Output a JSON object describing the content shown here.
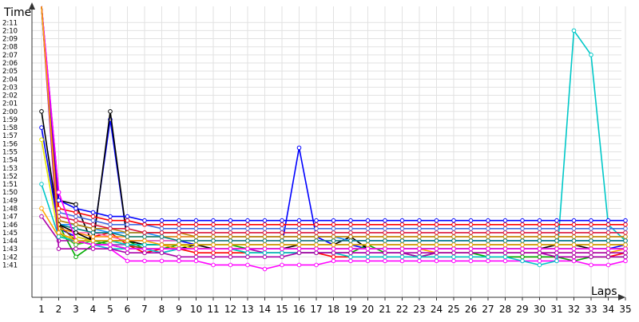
{
  "chart_data": {
    "type": "line",
    "xlabel": "Laps",
    "ylabel": "Time",
    "x": [
      1,
      2,
      3,
      4,
      5,
      6,
      7,
      8,
      9,
      10,
      11,
      12,
      13,
      14,
      15,
      16,
      17,
      18,
      19,
      20,
      21,
      22,
      23,
      24,
      25,
      26,
      27,
      28,
      29,
      30,
      31,
      32,
      33,
      34,
      35
    ],
    "ylim_seconds": [
      97,
      133
    ],
    "y_ticks_seconds": [
      101,
      102,
      103,
      104,
      105,
      106,
      107,
      108,
      109,
      110,
      111,
      112,
      113,
      114,
      115,
      116,
      117,
      118,
      119,
      120,
      121,
      122,
      123,
      124,
      125,
      126,
      127,
      128,
      129,
      130,
      131
    ],
    "y_tick_labels": [
      "1:41",
      "1:42",
      "1:43",
      "1:44",
      "1:45",
      "1:46",
      "1:47",
      "1:48",
      "1:49",
      "1:50",
      "1:51",
      "1:52",
      "1:53",
      "1:54",
      "1:55",
      "1:56",
      "1:57",
      "1:58",
      "1:59",
      "2:00",
      "2:01",
      "2:02",
      "2:03",
      "2:04",
      "2:05",
      "2:06",
      "2:07",
      "2:08",
      "2:09",
      "2:10",
      "2:11"
    ],
    "grid": true,
    "legend": false,
    "colors": [
      "#ff0000",
      "#0000ff",
      "#00aa00",
      "#000000",
      "#aa00aa",
      "#ff00ff",
      "#00c8c8",
      "#ffa500",
      "#8b4513",
      "#808080",
      "#e6e600",
      "#ff69b4",
      "#1e90ff",
      "#32cd32",
      "#9370db",
      "#ff8c00",
      "#008080",
      "#b8860b",
      "#dc143c",
      "#4169e1"
    ],
    "series": [
      {
        "values": [
          133,
          105,
          103.5,
          104.5,
          105,
          103.5,
          102.5,
          103,
          103,
          102.5,
          102.5,
          102.5,
          102.5,
          102.5,
          102.5,
          102.5,
          102.5,
          102,
          102,
          102,
          102,
          102,
          102,
          102,
          102,
          102,
          102,
          102,
          102,
          102,
          102,
          102,
          102,
          102,
          102.5
        ]
      },
      {
        "values": [
          118,
          105.5,
          104.5,
          104,
          119,
          104,
          104,
          104,
          104,
          103.5,
          103.5,
          103.5,
          103.5,
          103.5,
          103.5,
          115.5,
          104.5,
          103.5,
          103.5,
          103,
          103,
          103,
          103,
          103,
          103,
          103,
          103,
          103,
          103,
          103,
          103,
          103,
          103,
          103,
          103.5
        ]
      },
      {
        "values": [
          133,
          106,
          102,
          103.5,
          104,
          104,
          103,
          103,
          103.5,
          103,
          103,
          103,
          102.5,
          102.5,
          102.5,
          102.5,
          102.5,
          102.5,
          102.5,
          103.5,
          102.5,
          102.5,
          102,
          102.5,
          102.5,
          102.5,
          102,
          102,
          102,
          102,
          102,
          101.5,
          102,
          102,
          102
        ]
      },
      {
        "values": [
          133,
          109,
          108.5,
          103.5,
          120,
          104,
          103.5,
          103.5,
          103,
          103.5,
          103,
          103,
          103,
          103,
          103,
          103.5,
          103.5,
          103.5,
          104.5,
          103,
          103,
          103,
          103,
          103,
          103,
          103,
          103,
          103,
          103,
          103,
          103.5,
          103.5,
          103,
          103,
          103
        ]
      },
      {
        "values": [
          107,
          104,
          104,
          103.5,
          103.5,
          103,
          103,
          102.5,
          103,
          103,
          103,
          103,
          103,
          102.5,
          102.5,
          102.5,
          102.5,
          102.5,
          102.5,
          102.5,
          102.5,
          102.5,
          102,
          102.5,
          102.5,
          102.5,
          102.5,
          102.5,
          102.5,
          102.5,
          102,
          102,
          102,
          102,
          102
        ]
      },
      {
        "values": [
          133,
          110,
          104,
          103.5,
          103,
          101.5,
          101.5,
          101.5,
          101.5,
          101.5,
          101,
          101,
          101,
          100.5,
          101,
          101,
          101,
          101.5,
          101.5,
          101.5,
          101.5,
          101.5,
          101.5,
          101.5,
          101.5,
          101.5,
          101.5,
          101.5,
          101.5,
          101.5,
          101.5,
          101.5,
          101,
          101,
          101.5
        ]
      },
      {
        "values": [
          133,
          106,
          104,
          103.5,
          103,
          103,
          103,
          102.5,
          103,
          103,
          103,
          103,
          102.5,
          102.5,
          102.5,
          102.5,
          102.5,
          102.5,
          102,
          102,
          102,
          102,
          102,
          102,
          102,
          102,
          102,
          102,
          101.5,
          101,
          101.5,
          130,
          127,
          106,
          104
        ]
      },
      {
        "values": [
          108,
          104.5,
          104,
          103.5,
          103.5,
          103.5,
          103.5,
          103.5,
          103,
          103,
          103,
          103,
          103,
          103,
          103,
          103,
          103,
          103,
          103,
          103,
          103,
          103,
          103,
          102.5,
          102.5,
          102.5,
          102.5,
          102.5,
          102.5,
          102.5,
          102.5,
          102.5,
          102.5,
          102.5,
          103
        ]
      },
      {
        "values": [
          133,
          106,
          104,
          103.5,
          103.5,
          103.5,
          103,
          103,
          103,
          103,
          103,
          103,
          103,
          103,
          103,
          103,
          103,
          103,
          103,
          103,
          103,
          103,
          103,
          103,
          103,
          103,
          103,
          103,
          103,
          103,
          103,
          103,
          103,
          103,
          103
        ]
      },
      {
        "values": [
          133,
          105,
          104,
          103.5,
          103.5,
          103,
          103,
          103,
          103,
          103,
          103,
          103,
          103,
          103,
          103,
          103,
          103,
          103,
          103,
          103,
          103,
          103,
          103,
          103,
          103,
          103,
          103,
          103,
          103,
          103,
          103,
          103,
          103,
          103,
          103
        ]
      },
      {
        "values": [
          116.5,
          104.5,
          104.5,
          104,
          104,
          103.5,
          103.5,
          103.5,
          103.5,
          103,
          103,
          103,
          103,
          103,
          103,
          103,
          103,
          103,
          103,
          103,
          103,
          103,
          103,
          103,
          103,
          103,
          103,
          103,
          103,
          103,
          103,
          103,
          103,
          103,
          103
        ]
      },
      {
        "values": [
          133,
          106,
          105,
          105,
          104.5,
          104,
          104,
          104,
          104,
          104,
          104,
          104,
          104,
          104,
          104,
          104,
          104,
          104,
          104,
          104,
          104,
          104,
          104,
          104,
          104,
          104,
          104,
          104,
          104,
          104,
          104,
          104,
          104,
          104,
          104
        ]
      },
      {
        "values": [
          133,
          106,
          106,
          105.5,
          105,
          105,
          105,
          104.5,
          104.5,
          104.5,
          104.5,
          104.5,
          104.5,
          104.5,
          104.5,
          104.5,
          104.5,
          104.5,
          104,
          104,
          104,
          104,
          104,
          104,
          104,
          104,
          104,
          104,
          104,
          104,
          104,
          104,
          104,
          104,
          104
        ]
      },
      {
        "values": [
          133,
          105,
          103.5,
          104,
          103.5,
          103,
          103,
          103,
          103,
          103,
          103,
          103,
          103,
          103,
          103,
          103,
          103,
          103,
          103,
          103,
          103,
          103,
          103,
          103,
          103,
          103,
          103,
          103,
          103,
          103,
          103,
          103,
          103,
          103,
          103
        ]
      },
      {
        "values": [
          133,
          110,
          104,
          103.5,
          103.5,
          103.5,
          103.5,
          103.5,
          103.5,
          103.5,
          103.5,
          103.5,
          103.5,
          103.5,
          103.5,
          103.5,
          103.5,
          103.5,
          103.5,
          103.5,
          103.5,
          103.5,
          103.5,
          103.5,
          103.5,
          103.5,
          103.5,
          103.5,
          103.5,
          103.5,
          103.5,
          103.5,
          103.5,
          103.5,
          103.5
        ]
      },
      {
        "values": [
          133,
          105.5,
          105,
          104.5,
          104.5,
          104.5,
          104.5,
          104.5,
          104.5,
          104.5,
          104.5,
          104.5,
          104.5,
          104.5,
          104.5,
          104.5,
          104.5,
          104.5,
          104.5,
          104.5,
          104.5,
          104.5,
          104.5,
          104.5,
          104.5,
          104.5,
          104.5,
          104.5,
          104.5,
          104.5,
          104.5,
          104.5,
          104.5,
          104.5,
          104.5
        ]
      },
      {
        "values": [
          133,
          106,
          105.5,
          105,
          105,
          104.5,
          104.5,
          104.5,
          104,
          104,
          104,
          104,
          104,
          104,
          104,
          104,
          104,
          104,
          104,
          104,
          104,
          104,
          104,
          104,
          104,
          104,
          104,
          104,
          104,
          104,
          104,
          104,
          104,
          104,
          104
        ]
      },
      {
        "values": [
          133,
          106.5,
          106,
          105.5,
          105.5,
          105,
          105,
          105,
          105,
          104.5,
          104.5,
          104.5,
          104.5,
          104.5,
          104.5,
          104.5,
          104.5,
          104.5,
          104.5,
          104.5,
          104.5,
          104.5,
          104.5,
          104.5,
          104.5,
          104.5,
          104.5,
          104.5,
          104.5,
          104.5,
          104.5,
          104.5,
          104.5,
          104.5,
          104.5
        ]
      },
      {
        "values": [
          133,
          107,
          106.5,
          106,
          105.5,
          105.5,
          105,
          105,
          105,
          105,
          105,
          105,
          105,
          105,
          105,
          105,
          105,
          105,
          105,
          105,
          105,
          105,
          105,
          105,
          105,
          105,
          105,
          105,
          105,
          105,
          105,
          105,
          105,
          105,
          105
        ]
      },
      {
        "values": [
          133,
          107.5,
          107,
          106.5,
          106,
          106,
          106,
          105.5,
          105.5,
          105.5,
          105.5,
          105.5,
          105.5,
          105.5,
          105.5,
          105.5,
          105.5,
          105.5,
          105.5,
          105.5,
          105.5,
          105.5,
          105.5,
          105.5,
          105.5,
          105.5,
          105.5,
          105.5,
          105.5,
          105.5,
          105.5,
          105.5,
          105.5,
          105.5,
          105.5
        ]
      },
      {
        "values": [
          133,
          108,
          107.5,
          107,
          106.5,
          106.5,
          106,
          106,
          106,
          106,
          106,
          106,
          106,
          106,
          106,
          106,
          106,
          106,
          106,
          106,
          106,
          106,
          106,
          106,
          106,
          106,
          106,
          106,
          106,
          106,
          106,
          106,
          106,
          106,
          106
        ]
      },
      {
        "values": [
          133,
          109,
          108,
          107.5,
          107,
          107,
          106.5,
          106.5,
          106.5,
          106.5,
          106.5,
          106.5,
          106.5,
          106.5,
          106.5,
          106.5,
          106.5,
          106.5,
          106.5,
          106.5,
          106.5,
          106.5,
          106.5,
          106.5,
          106.5,
          106.5,
          106.5,
          106.5,
          106.5,
          106.5,
          106.5,
          106.5,
          106.5,
          106.5,
          106.5
        ]
      },
      {
        "values": [
          133,
          104.5,
          104,
          103.5,
          104,
          103.5,
          103.5,
          103.5,
          103.5,
          103.5,
          103.5,
          103.5,
          103,
          103,
          103,
          103,
          103,
          103,
          103,
          103,
          103,
          103,
          103,
          103,
          103,
          103,
          103,
          103,
          103,
          103,
          103,
          103,
          103,
          103,
          103
        ]
      },
      {
        "values": [
          120,
          106,
          105,
          104,
          104,
          104,
          103.5,
          103.5,
          103.5,
          103.5,
          103.5,
          103.5,
          103.5,
          103.5,
          103.5,
          103.5,
          103.5,
          103.5,
          103.5,
          103.5,
          103.5,
          103.5,
          103.5,
          103.5,
          103.5,
          103.5,
          103.5,
          103.5,
          103.5,
          103.5,
          103.5,
          103.5,
          103.5,
          103.5,
          103.5
        ]
      },
      {
        "values": [
          133,
          103,
          103,
          103,
          103,
          102.5,
          102.5,
          102.5,
          102,
          102,
          102,
          102,
          102,
          102,
          102,
          102.5,
          102.5,
          102.5,
          102.5,
          102.5,
          102.5,
          102.5,
          102.5,
          102.5,
          102.5,
          102.5,
          102.5,
          102.5,
          102.5,
          102.5,
          102.5,
          102.5,
          102.5,
          102.5,
          102.5
        ]
      },
      {
        "values": [
          133,
          110,
          104,
          103.5,
          103.5,
          103,
          103,
          103,
          103,
          103,
          103,
          103,
          103,
          103,
          103,
          103,
          103,
          103,
          103,
          103,
          103,
          103,
          103,
          103,
          103,
          103,
          103,
          103,
          103,
          103,
          103,
          103,
          103,
          103,
          103
        ]
      },
      {
        "values": [
          111,
          104.5,
          104,
          104,
          104,
          103.5,
          103.5,
          103.5,
          103.5,
          103.5,
          103.5,
          103.5,
          103.5,
          103.5,
          103.5,
          103.5,
          103.5,
          103.5,
          103.5,
          103.5,
          103.5,
          103.5,
          103.5,
          103.5,
          103.5,
          103.5,
          103.5,
          103.5,
          103.5,
          103.5,
          103.5,
          103.5,
          103.5,
          103.5,
          103.5
        ]
      },
      {
        "values": [
          133,
          105,
          104,
          104,
          104,
          104,
          104,
          103.5,
          103.5,
          103.5,
          103.5,
          103.5,
          103.5,
          103.5,
          103.5,
          103.5,
          103.5,
          103.5,
          103.5,
          103.5,
          103.5,
          103.5,
          103.5,
          103.5,
          103.5,
          103.5,
          103.5,
          103.5,
          103.5,
          103.5,
          103.5,
          103.5,
          103.5,
          103.5,
          103.5
        ]
      }
    ]
  }
}
